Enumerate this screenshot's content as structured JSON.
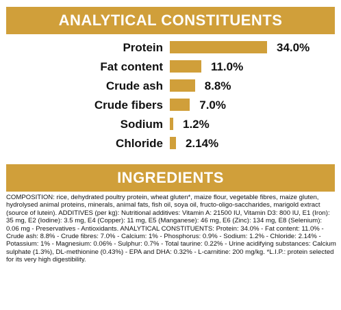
{
  "analytical": {
    "title": "ANALYTICAL CONSTITUENTS",
    "bar_color": "#d09f3a",
    "items": [
      {
        "label": "Protein",
        "value": "34.0%",
        "percent": 34.0
      },
      {
        "label": "Fat content",
        "value": "11.0%",
        "percent": 11.0
      },
      {
        "label": "Crude ash",
        "value": "8.8%",
        "percent": 8.8
      },
      {
        "label": "Crude fibers",
        "value": "7.0%",
        "percent": 7.0
      },
      {
        "label": "Sodium",
        "value": "1.2%",
        "percent": 1.2
      },
      {
        "label": "Chloride",
        "value": "2.14%",
        "percent": 2.14
      }
    ]
  },
  "ingredients": {
    "title": "INGREDIENTS",
    "composition": "COMPOSITION: rice, dehydrated poultry protein, wheat gluten*, maize flour, vegetable fibres, maize gluten, hydrolysed animal proteins, minerals, animal fats, fish oil, soya oil, fructo-oligo-saccharides, marigold extract (source of lutein). ADDITIVES (per kg): Nutritional additives: Vitamin A: 21500 IU, Vitamin D3: 800 IU, E1 (Iron): 35 mg, E2 (Iodine): 3.5 mg, E4 (Copper): 11 mg, E5 (Manganese): 46 mg, E6 (Zinc): 134 mg, E8 (Selenium): 0.06 mg - Preservatives - Antioxidants. ANALYTICAL CONSTITUENTS: Protein: 34.0% - Fat content: 11.0% - Crude ash: 8.8% - Crude fibres: 7.0% - Calcium: 1% - Phosphorus: 0.9% - Sodium: 1.2% - Chloride: 2.14% - Potassium: 1% - Magnesium: 0.06% - Sulphur: 0.7% - Total taurine: 0.22% - Urine acidifying substances: Calcium sulphate (1.3%), DL-methionine (0.43%) - EPA and DHA: 0.32% - L-carnitine: 200 mg/kg. *L.I.P.: protein selected for its very high digestibility."
  }
}
